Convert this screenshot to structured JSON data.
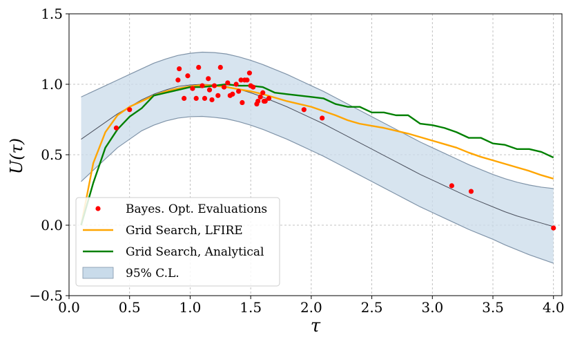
{
  "chart_data": {
    "type": "line",
    "xlabel": "τ",
    "ylabel": "U(τ)",
    "xlim": [
      0.0,
      4.07
    ],
    "ylim": [
      -0.5,
      1.5
    ],
    "xticks": [
      "0.0",
      "0.5",
      "1.0",
      "1.5",
      "2.0",
      "2.5",
      "3.0",
      "3.5",
      "4.0"
    ],
    "yticks": [
      "−0.5",
      "0.0",
      "0.5",
      "1.0",
      "1.5"
    ],
    "grid": true,
    "legend_position": "bottom-left",
    "legend": [
      {
        "label": "Bayes. Opt. Evaluations",
        "kind": "marker",
        "color": "#ff0000"
      },
      {
        "label": "Grid Search, LFIRE",
        "kind": "line",
        "color": "#ffa500"
      },
      {
        "label": "Grid Search, Analytical",
        "kind": "line",
        "color": "#008000"
      },
      {
        "label": "95% C.L.",
        "kind": "patch",
        "color": "#c9dbea"
      }
    ],
    "series": [
      {
        "name": "Grid Search, LFIRE",
        "color": "#ffa500",
        "x": [
          0.1,
          0.2,
          0.3,
          0.4,
          0.5,
          0.6,
          0.7,
          0.8,
          0.9,
          1.0,
          1.1,
          1.2,
          1.3,
          1.4,
          1.5,
          1.6,
          1.7,
          1.8,
          1.9,
          2.0,
          2.1,
          2.2,
          2.3,
          2.4,
          2.5,
          2.6,
          2.7,
          2.8,
          2.9,
          3.0,
          3.1,
          3.2,
          3.3,
          3.4,
          3.5,
          3.6,
          3.7,
          3.8,
          3.9,
          4.0
        ],
        "y": [
          0.0,
          0.44,
          0.66,
          0.78,
          0.84,
          0.88,
          0.92,
          0.95,
          0.97,
          0.985,
          0.995,
          0.99,
          0.98,
          0.965,
          0.95,
          0.93,
          0.905,
          0.88,
          0.86,
          0.84,
          0.81,
          0.78,
          0.745,
          0.72,
          0.705,
          0.69,
          0.67,
          0.65,
          0.625,
          0.6,
          0.575,
          0.55,
          0.515,
          0.485,
          0.46,
          0.435,
          0.41,
          0.385,
          0.355,
          0.33
        ]
      },
      {
        "name": "Grid Search, Analytical",
        "color": "#008000",
        "x": [
          0.1,
          0.2,
          0.3,
          0.4,
          0.5,
          0.6,
          0.7,
          0.8,
          0.9,
          1.0,
          1.1,
          1.2,
          1.3,
          1.4,
          1.5,
          1.6,
          1.7,
          1.8,
          1.9,
          2.0,
          2.1,
          2.2,
          2.3,
          2.4,
          2.5,
          2.6,
          2.7,
          2.8,
          2.9,
          3.0,
          3.1,
          3.2,
          3.3,
          3.4,
          3.5,
          3.6,
          3.7,
          3.8,
          3.9,
          4.0
        ],
        "y": [
          0.0,
          0.3,
          0.55,
          0.68,
          0.77,
          0.83,
          0.92,
          0.94,
          0.96,
          0.98,
          0.98,
          0.99,
          1.0,
          0.99,
          0.99,
          0.98,
          0.94,
          0.93,
          0.92,
          0.91,
          0.9,
          0.86,
          0.84,
          0.84,
          0.8,
          0.8,
          0.78,
          0.78,
          0.72,
          0.71,
          0.69,
          0.66,
          0.62,
          0.62,
          0.58,
          0.57,
          0.54,
          0.54,
          0.52,
          0.48
        ]
      },
      {
        "name": "GP mean",
        "color": "#4a4f5c",
        "x": [
          0.1,
          0.2,
          0.3,
          0.4,
          0.5,
          0.6,
          0.7,
          0.8,
          0.9,
          1.0,
          1.1,
          1.2,
          1.3,
          1.4,
          1.5,
          1.6,
          1.7,
          1.8,
          1.9,
          2.0,
          2.1,
          2.2,
          2.3,
          2.4,
          2.5,
          2.6,
          2.7,
          2.8,
          2.9,
          3.0,
          3.1,
          3.2,
          3.3,
          3.4,
          3.5,
          3.6,
          3.7,
          3.8,
          3.9,
          4.0
        ],
        "y": [
          0.61,
          0.67,
          0.73,
          0.79,
          0.84,
          0.89,
          0.93,
          0.96,
          0.985,
          0.995,
          1.0,
          0.995,
          0.985,
          0.965,
          0.94,
          0.91,
          0.875,
          0.84,
          0.8,
          0.76,
          0.72,
          0.675,
          0.63,
          0.585,
          0.54,
          0.495,
          0.45,
          0.405,
          0.36,
          0.32,
          0.28,
          0.24,
          0.2,
          0.165,
          0.13,
          0.095,
          0.065,
          0.04,
          0.015,
          -0.01
        ]
      }
    ],
    "band": {
      "name": "95% C.L.",
      "x": [
        0.1,
        0.2,
        0.3,
        0.4,
        0.5,
        0.6,
        0.7,
        0.8,
        0.9,
        1.0,
        1.1,
        1.2,
        1.3,
        1.4,
        1.5,
        1.6,
        1.7,
        1.8,
        1.9,
        2.0,
        2.1,
        2.2,
        2.3,
        2.4,
        2.5,
        2.6,
        2.7,
        2.8,
        2.9,
        3.0,
        3.1,
        3.2,
        3.3,
        3.4,
        3.5,
        3.6,
        3.7,
        3.8,
        3.9,
        4.0
      ],
      "upper": [
        0.91,
        0.95,
        0.99,
        1.03,
        1.07,
        1.11,
        1.15,
        1.18,
        1.205,
        1.22,
        1.228,
        1.225,
        1.215,
        1.195,
        1.17,
        1.14,
        1.105,
        1.07,
        1.03,
        0.99,
        0.95,
        0.905,
        0.86,
        0.815,
        0.77,
        0.725,
        0.68,
        0.635,
        0.59,
        0.55,
        0.51,
        0.47,
        0.43,
        0.395,
        0.36,
        0.33,
        0.305,
        0.285,
        0.27,
        0.26
      ],
      "lower": [
        0.31,
        0.39,
        0.47,
        0.55,
        0.61,
        0.67,
        0.71,
        0.74,
        0.76,
        0.77,
        0.772,
        0.765,
        0.755,
        0.735,
        0.71,
        0.68,
        0.645,
        0.61,
        0.57,
        0.53,
        0.49,
        0.445,
        0.4,
        0.355,
        0.31,
        0.265,
        0.22,
        0.175,
        0.13,
        0.09,
        0.05,
        0.01,
        -0.03,
        -0.065,
        -0.1,
        -0.14,
        -0.175,
        -0.21,
        -0.24,
        -0.27
      ]
    },
    "points": {
      "name": "Bayes. Opt. Evaluations",
      "color": "#ff0000",
      "x": [
        0.39,
        0.5,
        0.9,
        0.91,
        0.95,
        0.98,
        1.02,
        1.05,
        1.07,
        1.1,
        1.12,
        1.15,
        1.16,
        1.18,
        1.2,
        1.23,
        1.25,
        1.28,
        1.31,
        1.33,
        1.35,
        1.38,
        1.4,
        1.42,
        1.43,
        1.45,
        1.47,
        1.49,
        1.5,
        1.52,
        1.55,
        1.56,
        1.58,
        1.6,
        1.61,
        1.62,
        1.65,
        1.94,
        2.09,
        3.16,
        3.32,
        4.0
      ],
      "y": [
        0.69,
        0.82,
        1.03,
        1.11,
        0.9,
        1.06,
        0.97,
        0.9,
        1.12,
        0.99,
        0.9,
        1.04,
        0.96,
        0.89,
        0.99,
        0.92,
        1.12,
        0.98,
        1.01,
        0.92,
        0.93,
        1.0,
        0.95,
        1.03,
        0.87,
        1.03,
        1.03,
        1.08,
        0.99,
        0.98,
        0.86,
        0.88,
        0.91,
        0.94,
        0.88,
        0.88,
        0.9,
        0.82,
        0.76,
        0.28,
        0.24,
        -0.02
      ]
    }
  }
}
